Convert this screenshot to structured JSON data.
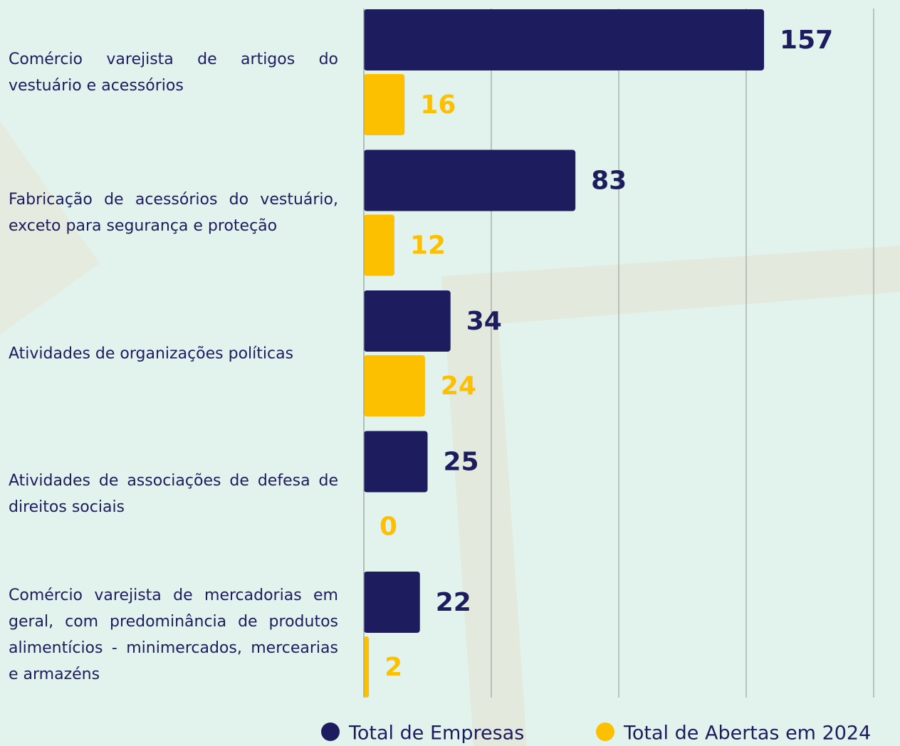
{
  "chart_data": {
    "type": "bar",
    "orientation": "horizontal",
    "categories": [
      "Comércio varejista de artigos do vestuário e acessórios",
      "Fabricação de acessórios do vestuário, exceto para segurança e proteção",
      "Atividades de organizações políticas",
      "Atividades de associações de defesa de direitos sociais",
      "Comércio varejista de mercadorias em geral, com predominância de produtos alimentícios - minimercados, mercearias e armazéns"
    ],
    "series": [
      {
        "name": "Total de Empresas",
        "color": "#1c1c5e",
        "values": [
          157,
          83,
          34,
          25,
          22
        ]
      },
      {
        "name": "Total de Abertas em 2024",
        "color": "#fdc000",
        "values": [
          16,
          12,
          24,
          0,
          2
        ]
      }
    ],
    "xlim": [
      0,
      200
    ],
    "xticks": [
      0,
      50,
      100,
      150,
      200
    ],
    "grid": true,
    "legend": "bottom"
  }
}
